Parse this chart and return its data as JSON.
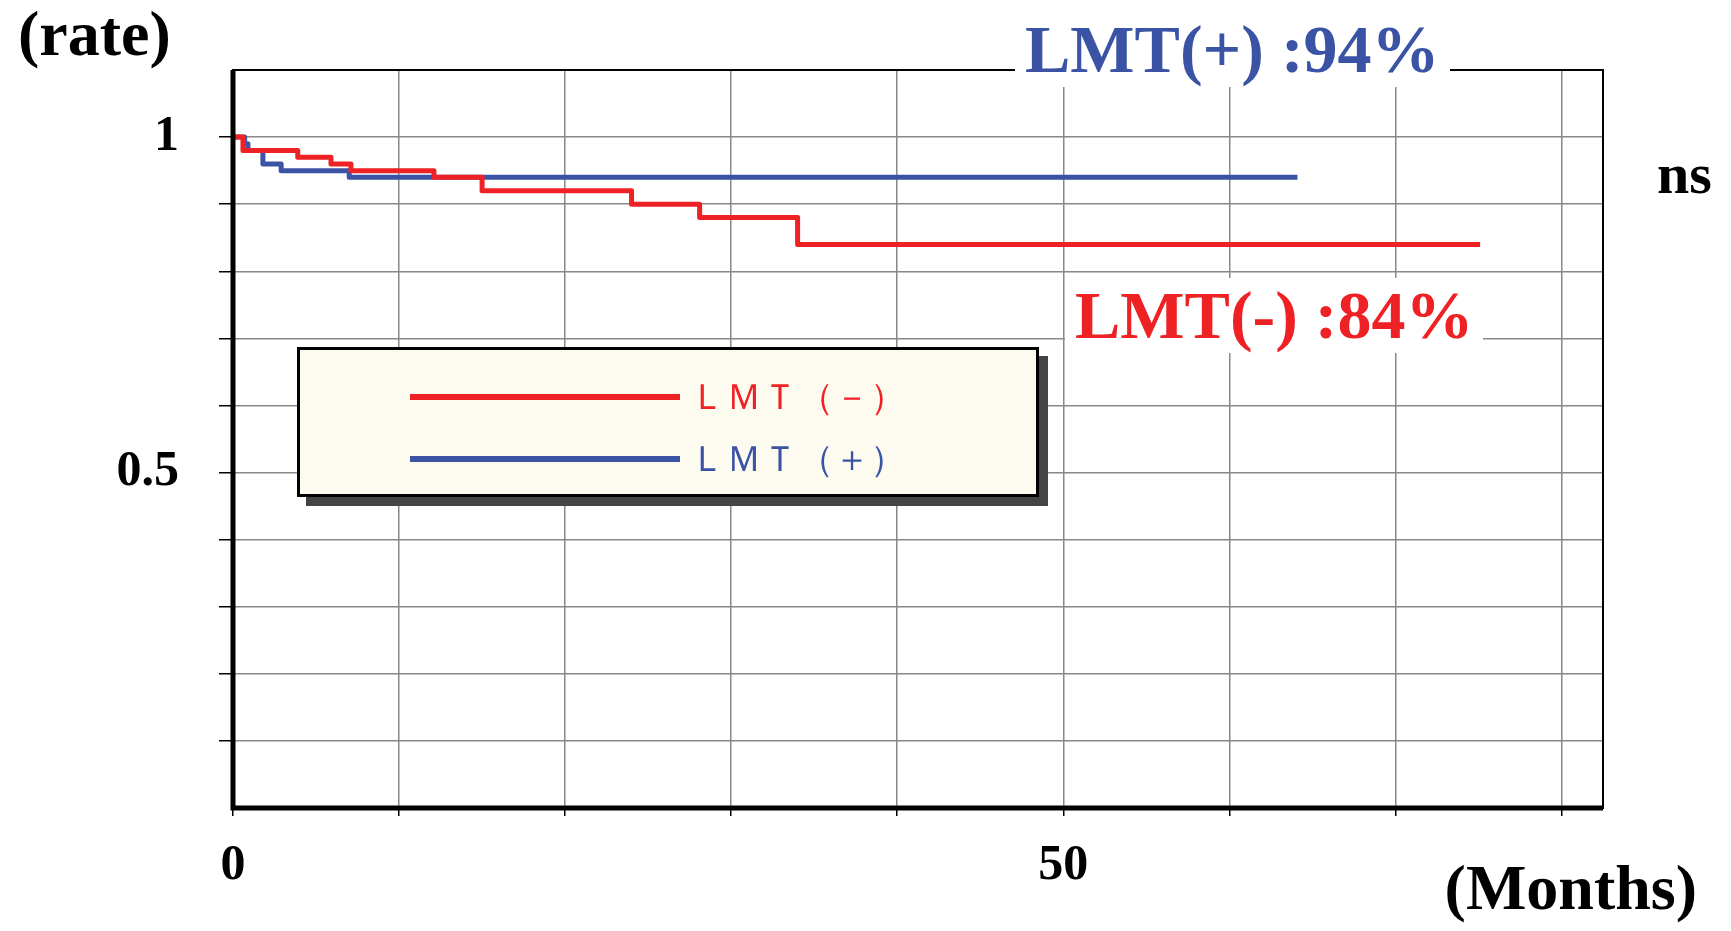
{
  "chart_data": {
    "type": "step",
    "xlabel": "(Months)",
    "ylabel": "(rate)",
    "xlim": [
      0,
      82.5
    ],
    "xticks": [
      0,
      {
        "value": 10,
        "label": null
      },
      {
        "value": 20,
        "label": null
      },
      {
        "value": 30,
        "label": null
      },
      {
        "value": 40,
        "label": null
      },
      50,
      {
        "value": 60,
        "label": null
      },
      {
        "value": 70,
        "label": null
      },
      {
        "value": 80,
        "label": null
      }
    ],
    "ylim": [
      0,
      1.1
    ],
    "yticks": [
      {
        "value": 0.1,
        "label": null
      },
      {
        "value": 0.2,
        "label": null
      },
      {
        "value": 0.3,
        "label": null
      },
      {
        "value": 0.4,
        "label": null
      },
      0.5,
      {
        "value": 0.6,
        "label": null
      },
      {
        "value": 0.7,
        "label": null
      },
      {
        "value": 0.8,
        "label": null
      },
      {
        "value": 0.9,
        "label": null
      },
      1
    ],
    "grid": true,
    "legend": "left",
    "marker": "none",
    "series": [
      {
        "name": "ＬＭＴ（－）",
        "color": "#ee2124",
        "x": [
          0,
          0.6,
          3.9,
          5.9,
          7.1,
          12.1,
          15.0,
          24.0,
          28.1,
          34.0,
          75.1
        ],
        "values": [
          1,
          0.98,
          0.97,
          0.96,
          0.95,
          0.94,
          0.92,
          0.9,
          0.88,
          0.84,
          0.84
        ]
      },
      {
        "name": "ＬＭＴ（＋）",
        "color": "#3a53a4",
        "x": [
          0,
          0.7,
          0.9,
          1.8,
          2.9,
          7.0,
          64.1
        ],
        "values": [
          1,
          0.99,
          0.98,
          0.96,
          0.95,
          0.94,
          0.94
        ]
      }
    ],
    "annotations": [
      "LMT(+) :94%",
      "LMT(-) :84%",
      "ns"
    ]
  }
}
